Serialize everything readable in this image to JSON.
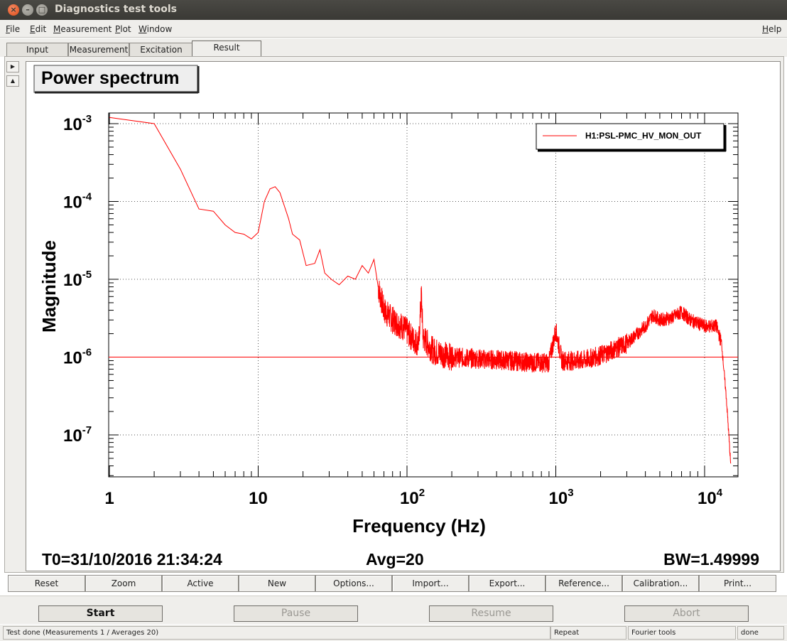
{
  "window": {
    "title": "Diagnostics test tools"
  },
  "menu": {
    "items": [
      "File",
      "Edit",
      "Measurement",
      "Plot",
      "Window"
    ],
    "help": "Help"
  },
  "tabs": [
    {
      "label": "Input",
      "active": false
    },
    {
      "label": "Measurement",
      "active": false
    },
    {
      "label": "Excitation",
      "active": false
    },
    {
      "label": "Result",
      "active": true
    }
  ],
  "plot": {
    "title": "Power spectrum",
    "t0": "T0=31/10/2016 21:34:24",
    "avg": "Avg=20",
    "bw": "BW=1.49999"
  },
  "chart_data": {
    "type": "line",
    "title": "Power spectrum",
    "xlabel": "Frequency (Hz)",
    "ylabel": "Magnitude",
    "x_scale": "log",
    "y_scale": "log",
    "xlim": [
      0.8,
      16000
    ],
    "ylim": [
      2.5e-08,
      0.0012
    ],
    "x_ticks": [
      {
        "value": 1,
        "base": "1",
        "exp": ""
      },
      {
        "value": 10,
        "base": "10",
        "exp": ""
      },
      {
        "value": 100,
        "base": "10",
        "exp": "2"
      },
      {
        "value": 1000,
        "base": "10",
        "exp": "3"
      },
      {
        "value": 10000,
        "base": "10",
        "exp": "4"
      }
    ],
    "y_ticks": [
      {
        "value": 0.001,
        "base": "10",
        "exp": "-3"
      },
      {
        "value": 0.0001,
        "base": "10",
        "exp": "-4"
      },
      {
        "value": 1e-05,
        "base": "10",
        "exp": "-5"
      },
      {
        "value": 1e-06,
        "base": "10",
        "exp": "-6"
      },
      {
        "value": 1e-07,
        "base": "10",
        "exp": "-7"
      }
    ],
    "grid": true,
    "legend": "top-right",
    "series": [
      {
        "name": "H1:PSL-PMC_HV_MON_OUT",
        "color": "#ff0000",
        "points": [
          [
            1,
            0.0012
          ],
          [
            2,
            0.001
          ],
          [
            3,
            0.00026
          ],
          [
            4,
            8e-05
          ],
          [
            5,
            7.5e-05
          ],
          [
            6,
            5e-05
          ],
          [
            7,
            4e-05
          ],
          [
            8,
            3.8e-05
          ],
          [
            9,
            3.3e-05
          ],
          [
            10,
            4e-05
          ],
          [
            11,
            0.0001
          ],
          [
            12,
            0.000145
          ],
          [
            13,
            0.000155
          ],
          [
            14,
            0.00013
          ],
          [
            16,
            6e-05
          ],
          [
            17,
            3.8e-05
          ],
          [
            19,
            3.2e-05
          ],
          [
            21,
            1.5e-05
          ],
          [
            24,
            1.6e-05
          ],
          [
            26,
            2.4e-05
          ],
          [
            28,
            1.2e-05
          ],
          [
            31,
            1e-05
          ],
          [
            35,
            8.5e-06
          ],
          [
            40,
            1.1e-05
          ],
          [
            45,
            1e-05
          ],
          [
            50,
            1.5e-05
          ],
          [
            55,
            1.2e-05
          ],
          [
            60,
            1.8e-05
          ],
          [
            64,
            8e-06
          ],
          [
            70,
            4e-06
          ],
          [
            80,
            3e-06
          ],
          [
            95,
            2.4e-06
          ],
          [
            110,
            1.7e-06
          ],
          [
            120,
            1.5e-06
          ],
          [
            125,
            6.5e-06
          ],
          [
            128,
            1.8e-06
          ],
          [
            150,
            1.2e-06
          ],
          [
            200,
            1e-06
          ],
          [
            300,
            9.5e-07
          ],
          [
            500,
            9e-07
          ],
          [
            700,
            8.5e-07
          ],
          [
            900,
            8.5e-07
          ],
          [
            1000,
            2.2e-06
          ],
          [
            1100,
            9e-07
          ],
          [
            1500,
            9e-07
          ],
          [
            2000,
            1.05e-06
          ],
          [
            3000,
            1.5e-06
          ],
          [
            4000,
            2.5e-06
          ],
          [
            4500,
            3.5e-06
          ],
          [
            5000,
            3e-06
          ],
          [
            6000,
            3.2e-06
          ],
          [
            7000,
            3.8e-06
          ],
          [
            8000,
            3e-06
          ],
          [
            10000,
            2.5e-06
          ],
          [
            12000,
            2.5e-06
          ],
          [
            13000,
            1.5e-06
          ],
          [
            14000,
            3e-07
          ],
          [
            15000,
            4e-08
          ]
        ]
      }
    ],
    "reference_line": 1e-06
  },
  "plot_buttons": [
    "Reset",
    "Zoom",
    "Active",
    "New",
    "Options...",
    "Import...",
    "Export...",
    "Reference...",
    "Calibration...",
    "Print..."
  ],
  "controls": [
    {
      "label": "Start",
      "enabled": true
    },
    {
      "label": "Pause",
      "enabled": false
    },
    {
      "label": "Resume",
      "enabled": false
    },
    {
      "label": "Abort",
      "enabled": false
    }
  ],
  "status": {
    "message": "Test done (Measurements 1 / Averages 20)",
    "mode": "Repeat",
    "tool": "Fourier tools",
    "state": "done"
  },
  "colors": {
    "trace": "#ff0000",
    "title_bar": "#3c3b37",
    "background": "#efeeeb"
  }
}
